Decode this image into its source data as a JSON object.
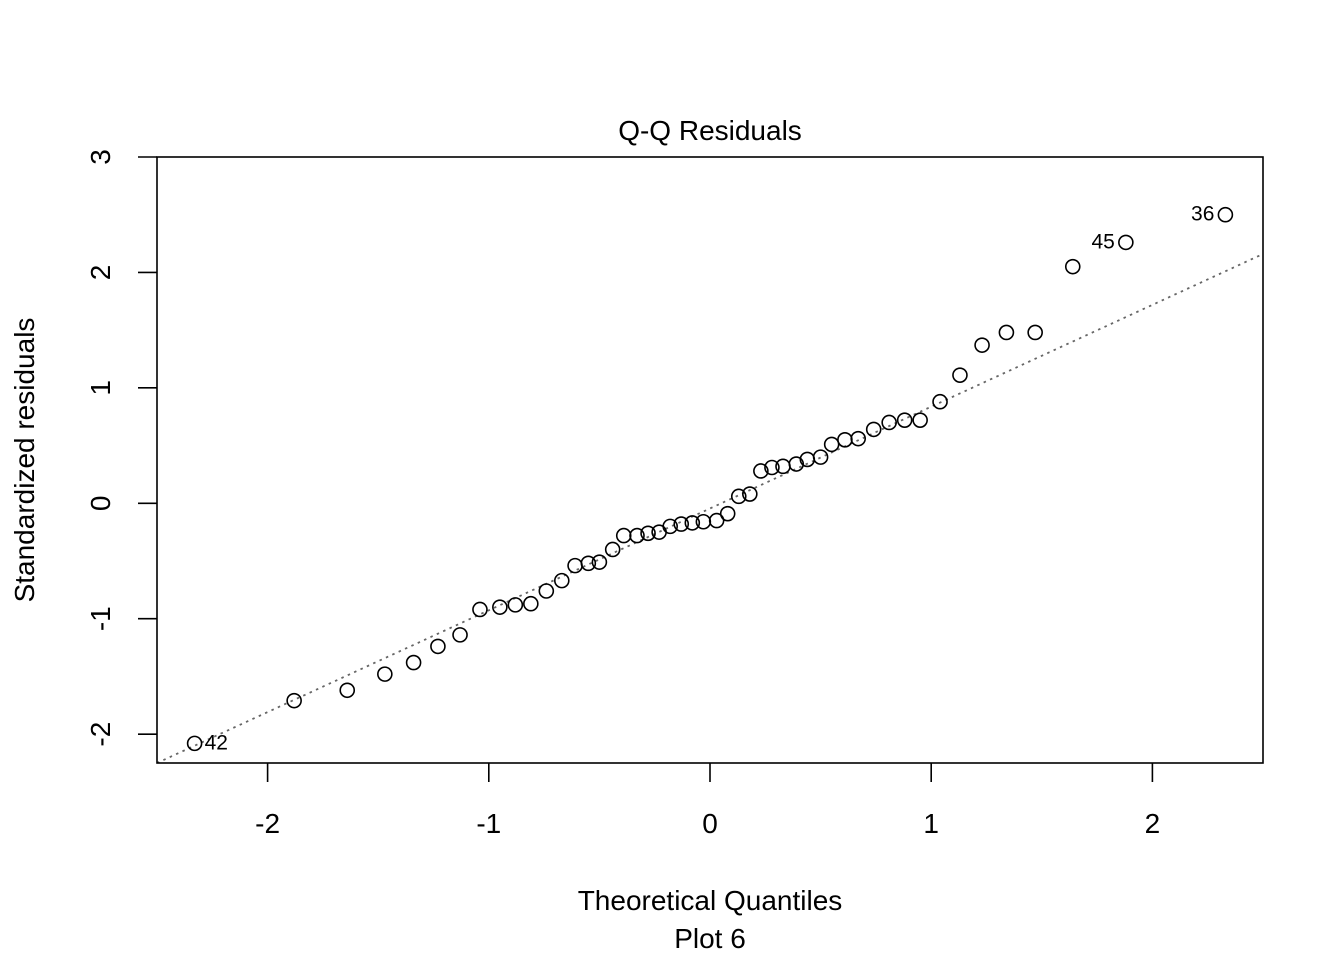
{
  "chart_data": {
    "type": "scatter",
    "title": "Q-Q Residuals",
    "xlabel": "Theoretical Quantiles",
    "subtitle": "Plot 6",
    "ylabel": "Standardized residuals",
    "xlim": [
      -2.5,
      2.5
    ],
    "ylim": [
      -2.25,
      3.0
    ],
    "xticks": [
      "-2",
      "-1",
      "0",
      "1",
      "2"
    ],
    "yticks": [
      "-2",
      "-1",
      "0",
      "1",
      "2",
      "3"
    ],
    "grid": false,
    "legend": "none",
    "reference_line": {
      "style": "dotted",
      "color": "#666666",
      "points": [
        [
          -2.5,
          -2.25
        ],
        [
          2.5,
          2.16
        ]
      ]
    },
    "points": [
      {
        "x": -2.33,
        "y": -2.08,
        "label": "42"
      },
      {
        "x": -1.88,
        "y": -1.71
      },
      {
        "x": -1.64,
        "y": -1.62
      },
      {
        "x": -1.47,
        "y": -1.48
      },
      {
        "x": -1.34,
        "y": -1.38
      },
      {
        "x": -1.23,
        "y": -1.24
      },
      {
        "x": -1.13,
        "y": -1.14
      },
      {
        "x": -1.04,
        "y": -0.92
      },
      {
        "x": -0.95,
        "y": -0.9
      },
      {
        "x": -0.88,
        "y": -0.88
      },
      {
        "x": -0.81,
        "y": -0.87
      },
      {
        "x": -0.74,
        "y": -0.76
      },
      {
        "x": -0.67,
        "y": -0.67
      },
      {
        "x": -0.61,
        "y": -0.54
      },
      {
        "x": -0.55,
        "y": -0.52
      },
      {
        "x": -0.5,
        "y": -0.51
      },
      {
        "x": -0.44,
        "y": -0.4
      },
      {
        "x": -0.39,
        "y": -0.28
      },
      {
        "x": -0.33,
        "y": -0.28
      },
      {
        "x": -0.28,
        "y": -0.26
      },
      {
        "x": -0.23,
        "y": -0.25
      },
      {
        "x": -0.18,
        "y": -0.2
      },
      {
        "x": -0.13,
        "y": -0.18
      },
      {
        "x": -0.08,
        "y": -0.17
      },
      {
        "x": -0.03,
        "y": -0.16
      },
      {
        "x": 0.03,
        "y": -0.15
      },
      {
        "x": 0.08,
        "y": -0.09
      },
      {
        "x": 0.13,
        "y": 0.06
      },
      {
        "x": 0.18,
        "y": 0.08
      },
      {
        "x": 0.23,
        "y": 0.28
      },
      {
        "x": 0.28,
        "y": 0.31
      },
      {
        "x": 0.33,
        "y": 0.32
      },
      {
        "x": 0.39,
        "y": 0.34
      },
      {
        "x": 0.44,
        "y": 0.38
      },
      {
        "x": 0.5,
        "y": 0.4
      },
      {
        "x": 0.55,
        "y": 0.51
      },
      {
        "x": 0.61,
        "y": 0.55
      },
      {
        "x": 0.67,
        "y": 0.56
      },
      {
        "x": 0.74,
        "y": 0.64
      },
      {
        "x": 0.81,
        "y": 0.7
      },
      {
        "x": 0.88,
        "y": 0.72
      },
      {
        "x": 0.95,
        "y": 0.72
      },
      {
        "x": 1.04,
        "y": 0.88
      },
      {
        "x": 1.13,
        "y": 1.11
      },
      {
        "x": 1.23,
        "y": 1.37
      },
      {
        "x": 1.34,
        "y": 1.48
      },
      {
        "x": 1.47,
        "y": 1.48
      },
      {
        "x": 1.64,
        "y": 2.05
      },
      {
        "x": 1.88,
        "y": 2.26,
        "label": "45"
      },
      {
        "x": 2.33,
        "y": 2.5,
        "label": "36"
      }
    ]
  }
}
